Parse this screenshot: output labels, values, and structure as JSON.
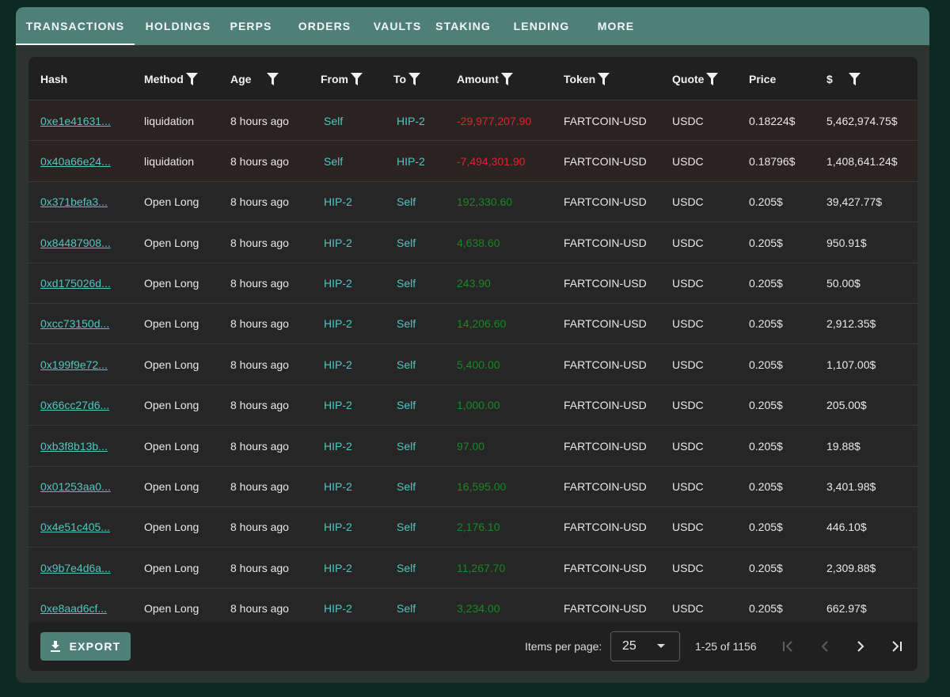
{
  "tabs": [
    {
      "label": "TRANSACTIONS",
      "active": true
    },
    {
      "label": "HOLDINGS"
    },
    {
      "label": "PERPS"
    },
    {
      "label": "ORDERS"
    },
    {
      "label": "VAULTS"
    },
    {
      "label": "STAKING"
    },
    {
      "label": "LENDING"
    },
    {
      "label": "MORE"
    }
  ],
  "table": {
    "columns": [
      {
        "label": "Hash",
        "filter": false
      },
      {
        "label": "Method",
        "filter": true
      },
      {
        "label": "Age",
        "filter": true
      },
      {
        "label": "From",
        "filter": true
      },
      {
        "label": "To",
        "filter": true
      },
      {
        "label": "Amount",
        "filter": true
      },
      {
        "label": "Token",
        "filter": true
      },
      {
        "label": "Quote",
        "filter": true
      },
      {
        "label": "Price",
        "filter": false
      },
      {
        "label": "$",
        "filter": true
      }
    ],
    "rows": [
      {
        "hash": "0xe1e41631...",
        "method": "liquidation",
        "age": "8 hours ago",
        "from": "Self",
        "to": "HIP-2",
        "amount": "-29,977,207.90",
        "sign": "neg",
        "token": "FARTCOIN-USD",
        "quote": "USDC",
        "price": "0.18224$",
        "usd": "5,462,974.75$"
      },
      {
        "hash": "0x40a66e24...",
        "method": "liquidation",
        "age": "8 hours ago",
        "from": "Self",
        "to": "HIP-2",
        "amount": "-7,494,301.90",
        "sign": "neg",
        "token": "FARTCOIN-USD",
        "quote": "USDC",
        "price": "0.18796$",
        "usd": "1,408,641.24$"
      },
      {
        "hash": "0x371befa3...",
        "method": "Open Long",
        "age": "8 hours ago",
        "from": "HIP-2",
        "to": "Self",
        "amount": "192,330.60",
        "sign": "pos",
        "token": "FARTCOIN-USD",
        "quote": "USDC",
        "price": "0.205$",
        "usd": "39,427.77$"
      },
      {
        "hash": "0x84487908...",
        "method": "Open Long",
        "age": "8 hours ago",
        "from": "HIP-2",
        "to": "Self",
        "amount": "4,638.60",
        "sign": "pos",
        "token": "FARTCOIN-USD",
        "quote": "USDC",
        "price": "0.205$",
        "usd": "950.91$"
      },
      {
        "hash": "0xd175026d...",
        "method": "Open Long",
        "age": "8 hours ago",
        "from": "HIP-2",
        "to": "Self",
        "amount": "243.90",
        "sign": "pos",
        "token": "FARTCOIN-USD",
        "quote": "USDC",
        "price": "0.205$",
        "usd": "50.00$"
      },
      {
        "hash": "0xcc73150d...",
        "method": "Open Long",
        "age": "8 hours ago",
        "from": "HIP-2",
        "to": "Self",
        "amount": "14,206.60",
        "sign": "pos",
        "token": "FARTCOIN-USD",
        "quote": "USDC",
        "price": "0.205$",
        "usd": "2,912.35$"
      },
      {
        "hash": "0x199f9e72...",
        "method": "Open Long",
        "age": "8 hours ago",
        "from": "HIP-2",
        "to": "Self",
        "amount": "5,400.00",
        "sign": "pos",
        "token": "FARTCOIN-USD",
        "quote": "USDC",
        "price": "0.205$",
        "usd": "1,107.00$"
      },
      {
        "hash": "0x66cc27d6...",
        "method": "Open Long",
        "age": "8 hours ago",
        "from": "HIP-2",
        "to": "Self",
        "amount": "1,000.00",
        "sign": "pos",
        "token": "FARTCOIN-USD",
        "quote": "USDC",
        "price": "0.205$",
        "usd": "205.00$"
      },
      {
        "hash": "0xb3f8b13b...",
        "method": "Open Long",
        "age": "8 hours ago",
        "from": "HIP-2",
        "to": "Self",
        "amount": "97.00",
        "sign": "pos",
        "token": "FARTCOIN-USD",
        "quote": "USDC",
        "price": "0.205$",
        "usd": "19.88$"
      },
      {
        "hash": "0x01253aa0...",
        "method": "Open Long",
        "age": "8 hours ago",
        "from": "HIP-2",
        "to": "Self",
        "amount": "16,595.00",
        "sign": "pos",
        "token": "FARTCOIN-USD",
        "quote": "USDC",
        "price": "0.205$",
        "usd": "3,401.98$"
      },
      {
        "hash": "0x4e51c405...",
        "method": "Open Long",
        "age": "8 hours ago",
        "from": "HIP-2",
        "to": "Self",
        "amount": "2,176.10",
        "sign": "pos",
        "token": "FARTCOIN-USD",
        "quote": "USDC",
        "price": "0.205$",
        "usd": "446.10$"
      },
      {
        "hash": "0x9b7e4d6a...",
        "method": "Open Long",
        "age": "8 hours ago",
        "from": "HIP-2",
        "to": "Self",
        "amount": "11,267.70",
        "sign": "pos",
        "token": "FARTCOIN-USD",
        "quote": "USDC",
        "price": "0.205$",
        "usd": "2,309.88$"
      },
      {
        "hash": "0xe8aad6cf...",
        "method": "Open Long",
        "age": "8 hours ago",
        "from": "HIP-2",
        "to": "Self",
        "amount": "3,234.00",
        "sign": "pos",
        "token": "FARTCOIN-USD",
        "quote": "USDC",
        "price": "0.205$",
        "usd": "662.97$"
      }
    ]
  },
  "footer": {
    "export_label": "EXPORT",
    "export_icon": "download-icon",
    "items_per_page_label": "Items per page:",
    "items_per_page_value": "25",
    "range_label": "1-25 of 1156"
  },
  "colors": {
    "accent": "#4f8078",
    "link": "#4fc7c0",
    "negative": "#e0262c",
    "positive": "#178a24"
  }
}
